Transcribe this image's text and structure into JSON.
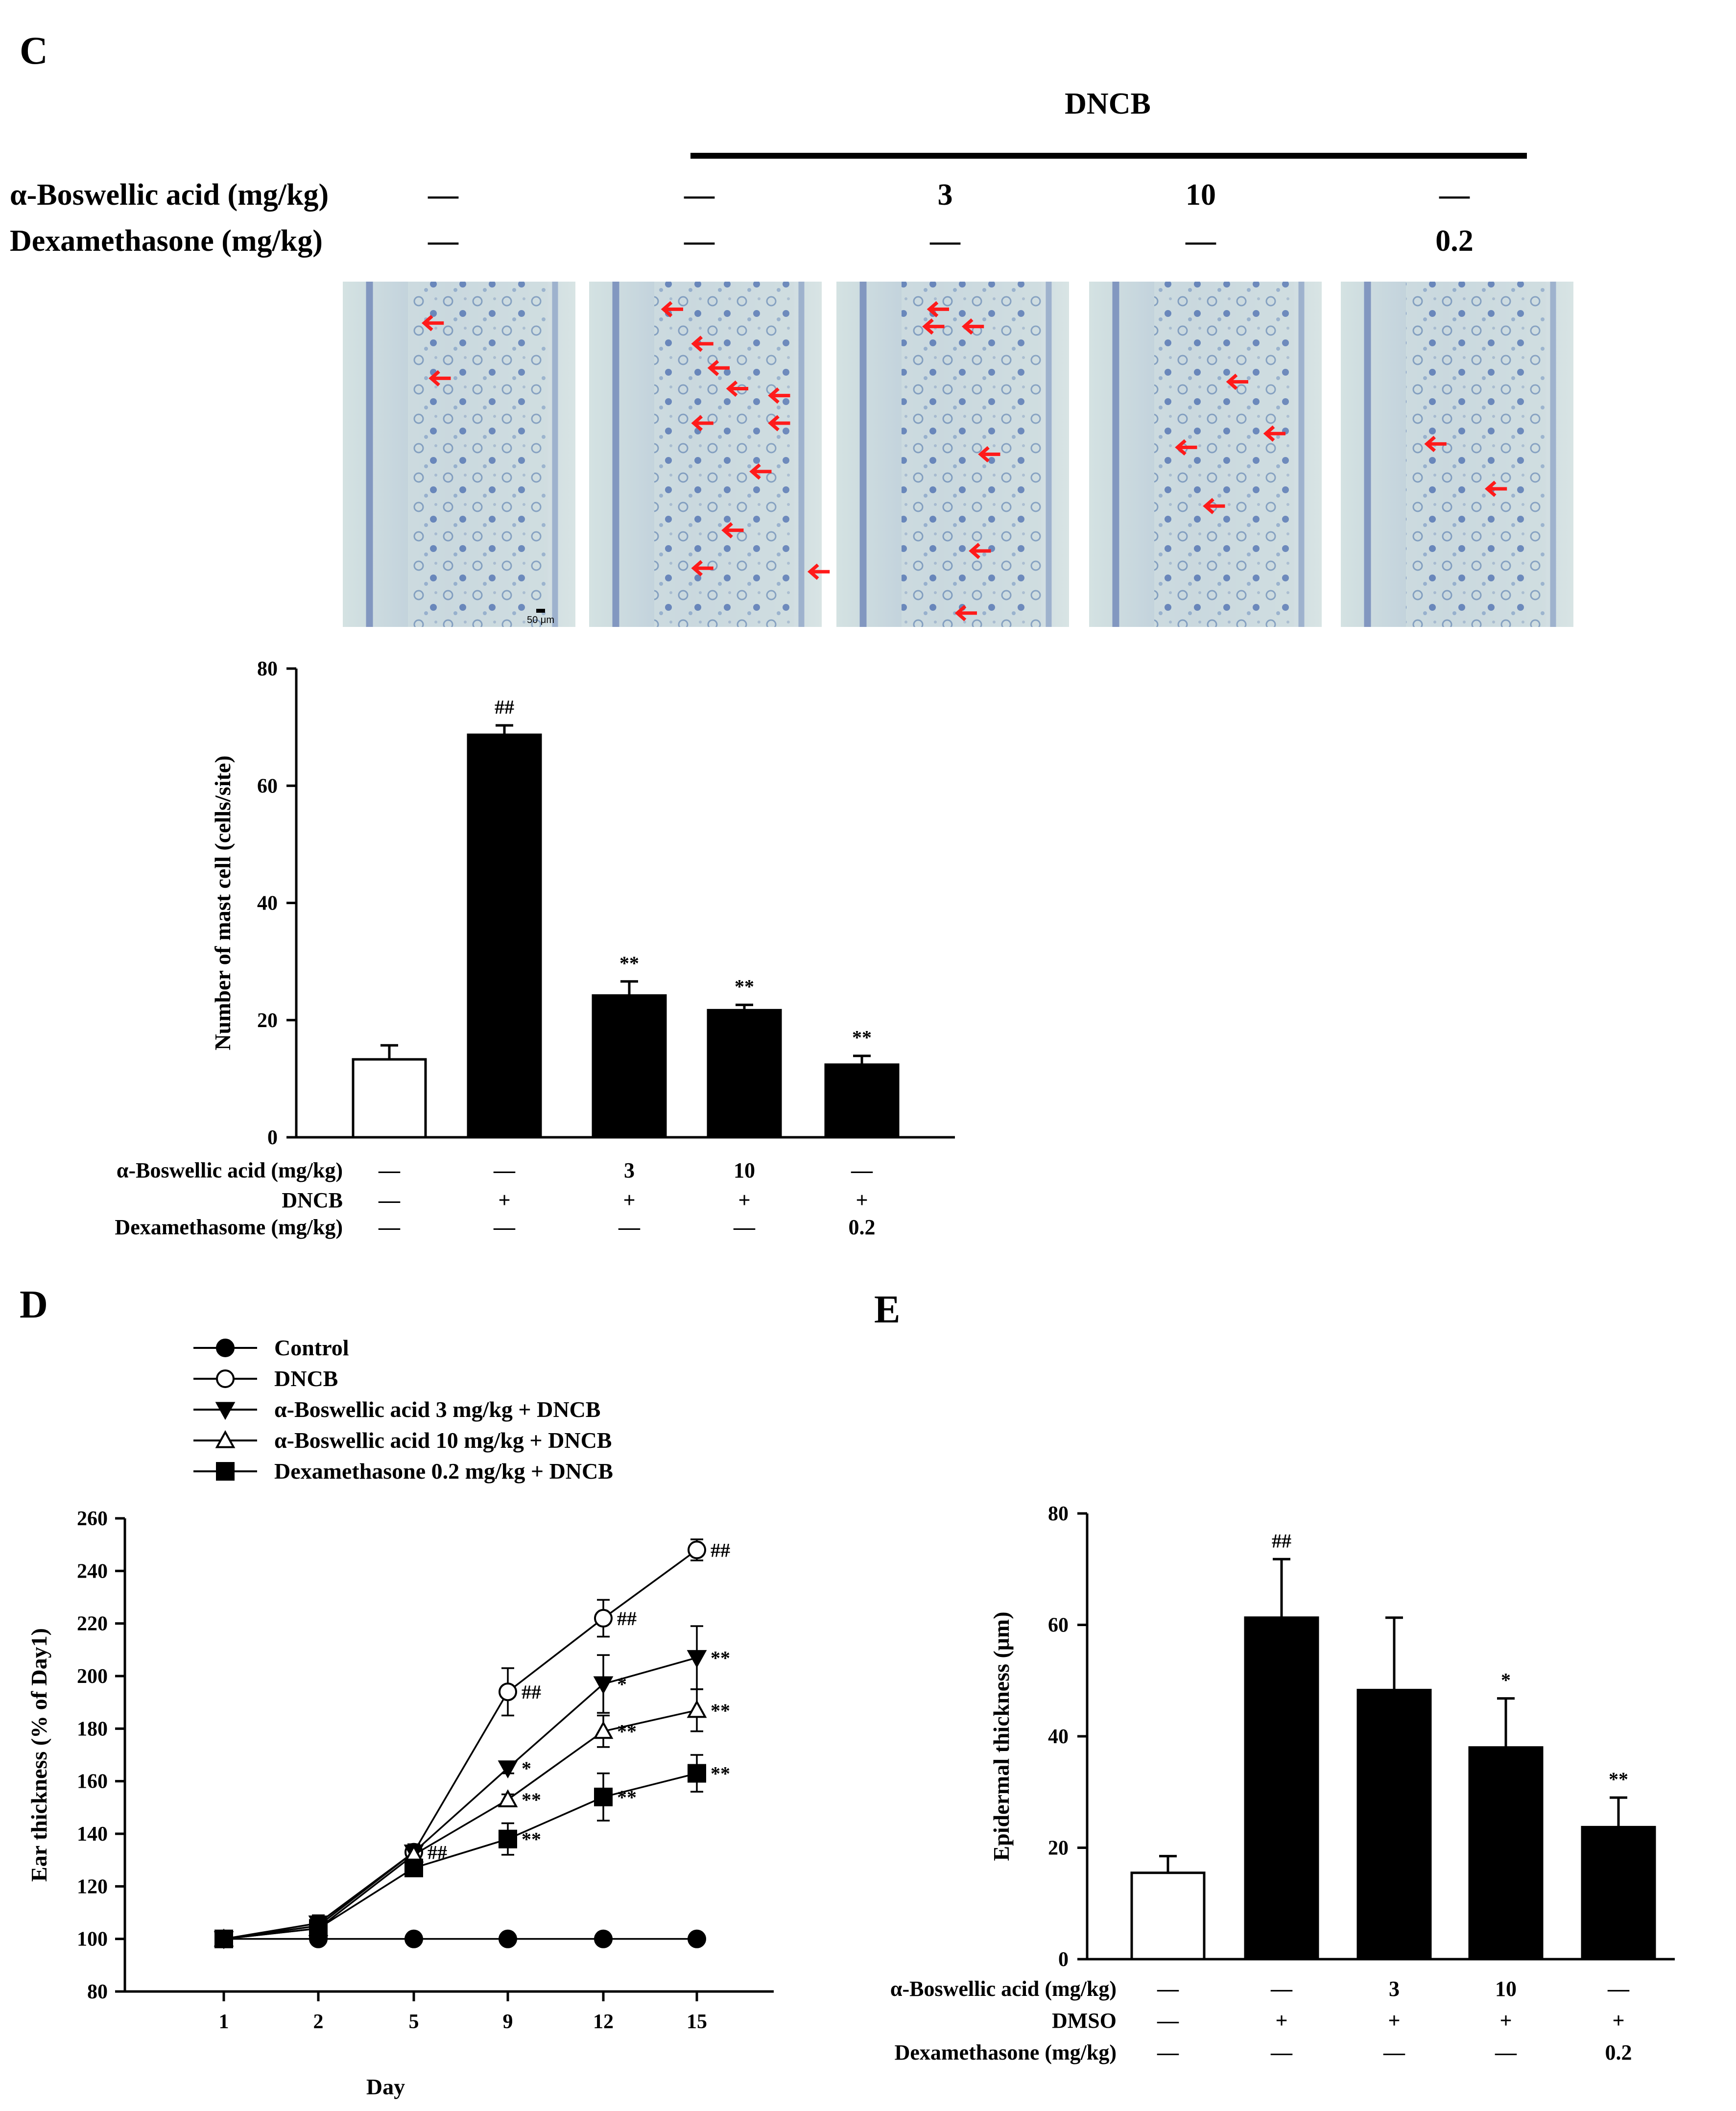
{
  "panels": {
    "C": {
      "letter": "C",
      "header": {
        "group_label": "DNCB",
        "rows": [
          {
            "label": "α-Boswellic acid (mg/kg)",
            "cells": [
              "—",
              "—",
              "3",
              "10",
              "—"
            ]
          },
          {
            "label": "Dexamethasone (mg/kg)",
            "cells": [
              "—",
              "—",
              "—",
              "—",
              "0.2"
            ]
          }
        ]
      },
      "micrographs": [
        {
          "arrows": 2,
          "scale_bar": "50 μm"
        },
        {
          "arrows": 11,
          "scale_bar": ""
        },
        {
          "arrows": 6,
          "scale_bar": ""
        },
        {
          "arrows": 4,
          "scale_bar": ""
        },
        {
          "arrows": 2,
          "scale_bar": ""
        }
      ],
      "table": {
        "rows": [
          {
            "label": "α-Boswellic acid (mg/kg)",
            "cells": [
              "—",
              "—",
              "3",
              "10",
              "—"
            ]
          },
          {
            "label": "DNCB",
            "cells": [
              "—",
              "+",
              "+",
              "+",
              "+"
            ]
          },
          {
            "label": "Dexamethasome (mg/kg)",
            "cells": [
              "—",
              "—",
              "—",
              "—",
              "0.2"
            ]
          }
        ]
      }
    },
    "D": {
      "letter": "D"
    },
    "E": {
      "letter": "E",
      "table": {
        "rows": [
          {
            "label": "α-Boswellic acid (mg/kg)",
            "cells": [
              "—",
              "—",
              "3",
              "10",
              "—"
            ]
          },
          {
            "label": "DMSO",
            "cells": [
              "—",
              "+",
              "+",
              "+",
              "+"
            ]
          },
          {
            "label": "Dexamethasone (mg/kg)",
            "cells": [
              "—",
              "—",
              "—",
              "—",
              "0.2"
            ]
          }
        ]
      }
    }
  },
  "chart_data": [
    {
      "id": "C",
      "type": "bar",
      "title": "",
      "xlabel": "",
      "ylabel": "Number of mast cell (cells/site)",
      "ylim": [
        0,
        80
      ],
      "yticks": [
        0,
        20,
        40,
        60,
        80
      ],
      "categories": [
        "Control",
        "DNCB",
        "α-Boswellic acid 3 + DNCB",
        "α-Boswellic acid 10 + DNCB",
        "Dexamethasone 0.2 + DNCB"
      ],
      "values": [
        13.3,
        68.7,
        24.2,
        21.7,
        12.4
      ],
      "errors": [
        2.4,
        1.6,
        2.4,
        0.9,
        1.5
      ],
      "colors": [
        "#ffffff",
        "#000000",
        "#000000",
        "#000000",
        "#000000"
      ],
      "annotations": [
        "",
        "##",
        "**",
        "**",
        "**"
      ]
    },
    {
      "id": "D",
      "type": "line",
      "title": "",
      "xlabel": "Day",
      "ylabel": "Ear thickness (% of  Day1)",
      "x": [
        "1",
        "2",
        "5",
        "9",
        "12",
        "15"
      ],
      "ylim": [
        80,
        260
      ],
      "yticks": [
        80,
        100,
        120,
        140,
        160,
        180,
        200,
        220,
        240,
        260
      ],
      "legend_position": "top-left",
      "series": [
        {
          "name": "Control",
          "marker": "circle-filled",
          "values": [
            100,
            100,
            100,
            100,
            100,
            100
          ],
          "errors": [
            2,
            2,
            2,
            2,
            2,
            2
          ],
          "annotations": [
            "",
            "",
            "",
            "",
            "",
            ""
          ]
        },
        {
          "name": "DNCB",
          "marker": "circle-open",
          "values": [
            100,
            105,
            133,
            194,
            222,
            248
          ],
          "errors": [
            2,
            3,
            3,
            9,
            7,
            4
          ],
          "annotations": [
            "",
            "",
            "##",
            "##",
            "##",
            "##"
          ]
        },
        {
          "name": "α-Boswellic acid 3 mg/kg + DNCB",
          "marker": "triangle-down-filled",
          "values": [
            100,
            106,
            133,
            165,
            197,
            207
          ],
          "errors": [
            2,
            3,
            3,
            2,
            11,
            12
          ],
          "annotations": [
            "",
            "",
            "",
            "*",
            "*",
            "**"
          ]
        },
        {
          "name": "α-Boswellic acid 10 mg/kg + DNCB",
          "marker": "triangle-up-open",
          "values": [
            100,
            104,
            132,
            153,
            179,
            187
          ],
          "errors": [
            2,
            3,
            3,
            2,
            6,
            8
          ],
          "annotations": [
            "",
            "",
            "",
            "**",
            "**",
            "**"
          ]
        },
        {
          "name": "Dexamethasone 0.2 mg/kg + DNCB",
          "marker": "square-filled",
          "values": [
            100,
            104,
            127,
            138,
            154,
            163
          ],
          "errors": [
            2,
            3,
            2,
            6,
            9,
            7
          ],
          "annotations": [
            "",
            "",
            "",
            "**",
            "**",
            "**"
          ]
        }
      ]
    },
    {
      "id": "E",
      "type": "bar",
      "title": "",
      "xlabel": "",
      "ylabel": "Epidermal thickness (μm)",
      "ylim": [
        0,
        80
      ],
      "yticks": [
        0,
        20,
        40,
        60,
        80
      ],
      "categories": [
        "Control",
        "DNCB",
        "α-Boswellic acid 3 + DNCB",
        "α-Boswellic acid 10 + DNCB",
        "Dexamethasone 0.2 + DNCB"
      ],
      "values": [
        15.5,
        61.3,
        48.3,
        38.0,
        23.7
      ],
      "errors": [
        3.0,
        10.5,
        13.0,
        8.8,
        5.3
      ],
      "colors": [
        "#ffffff",
        "#000000",
        "#000000",
        "#000000",
        "#000000"
      ],
      "annotations": [
        "",
        "##",
        "",
        "*",
        "**"
      ]
    }
  ]
}
